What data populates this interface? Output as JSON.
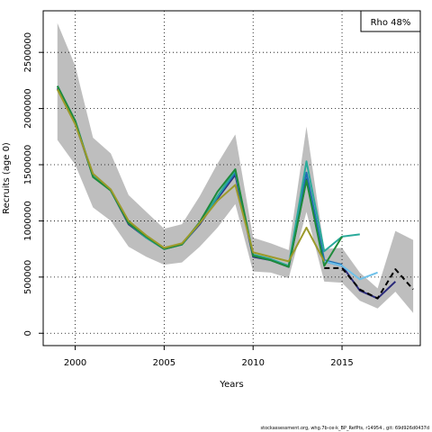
{
  "chart_data": {
    "type": "line",
    "xlabel": "Years",
    "ylabel": "Recruits (age 0)",
    "xlim": [
      1998.2,
      2019.4
    ],
    "ylim": [
      -110000,
      2870000
    ],
    "x_ticks": [
      2000,
      2005,
      2010,
      2015
    ],
    "y_ticks": [
      0,
      500000,
      1000000,
      1500000,
      2000000,
      2500000
    ],
    "y_tick_labels": [
      "0",
      "500000",
      "1000000",
      "1500000",
      "2000000",
      "2500000"
    ],
    "grid": "dotted",
    "legend_text": "Rho 48%",
    "legend_position": "top-right",
    "band": {
      "color": "#bebebe",
      "x": [
        1999,
        2000,
        2001,
        2002,
        2003,
        2004,
        2005,
        2006,
        2007,
        2008,
        2009,
        2010,
        2011,
        2012,
        2013,
        2014,
        2015,
        2016,
        2017,
        2018,
        2019
      ],
      "lower": [
        1720000,
        1500000,
        1120000,
        1000000,
        770000,
        680000,
        610000,
        630000,
        770000,
        940000,
        1150000,
        550000,
        540000,
        490000,
        1080000,
        460000,
        450000,
        290000,
        220000,
        370000,
        180000
      ],
      "upper": [
        2760000,
        2380000,
        1740000,
        1600000,
        1230000,
        1080000,
        930000,
        970000,
        1220000,
        1510000,
        1770000,
        850000,
        800000,
        740000,
        1840000,
        750000,
        760000,
        540000,
        400000,
        910000,
        830000
      ]
    },
    "series": [
      {
        "color": "#2a2a7a",
        "dashed": false,
        "x": [
          1999,
          2000,
          2001,
          2002,
          2003,
          2004,
          2005,
          2006,
          2007,
          2008,
          2009,
          2010,
          2011,
          2012,
          2013,
          2014,
          2015,
          2016,
          2017,
          2018
        ],
        "y": [
          2180000,
          1870000,
          1400000,
          1270000,
          970000,
          850000,
          750000,
          790000,
          970000,
          1200000,
          1410000,
          680000,
          650000,
          590000,
          1370000,
          640000,
          600000,
          380000,
          310000,
          460000
        ]
      },
      {
        "color": "#1f6fb4",
        "dashed": false,
        "x": [
          1999,
          2000,
          2001,
          2002,
          2003,
          2004,
          2005,
          2006,
          2007,
          2008,
          2009,
          2010,
          2011,
          2012,
          2013,
          2014,
          2015
        ],
        "y": [
          2200000,
          1890000,
          1400000,
          1270000,
          980000,
          850000,
          750000,
          790000,
          980000,
          1210000,
          1430000,
          690000,
          650000,
          600000,
          1430000,
          650000,
          610000
        ]
      },
      {
        "color": "#6ec1ea",
        "dashed": false,
        "x": [
          2014,
          2015,
          2016,
          2017
        ],
        "y": [
          640000,
          600000,
          480000,
          540000
        ]
      },
      {
        "color": "#2aaa9b",
        "dashed": false,
        "x": [
          1999,
          2000,
          2001,
          2002,
          2003,
          2004,
          2005,
          2006,
          2007,
          2008,
          2009,
          2010,
          2011,
          2012,
          2013,
          2014,
          2015,
          2016
        ],
        "y": [
          2200000,
          1890000,
          1400000,
          1270000,
          980000,
          850000,
          750000,
          790000,
          980000,
          1220000,
          1450000,
          700000,
          660000,
          600000,
          1530000,
          730000,
          860000,
          880000
        ]
      },
      {
        "color": "#1e8a3a",
        "dashed": false,
        "x": [
          1999,
          2000,
          2001,
          2002,
          2003,
          2004,
          2005,
          2006,
          2007,
          2008,
          2009,
          2010,
          2011,
          2012,
          2013,
          2014,
          2015
        ],
        "y": [
          2200000,
          1890000,
          1390000,
          1270000,
          980000,
          860000,
          750000,
          790000,
          990000,
          1260000,
          1460000,
          690000,
          650000,
          590000,
          1360000,
          600000,
          860000
        ]
      },
      {
        "color": "#9c9a2a",
        "dashed": false,
        "x": [
          1999,
          2000,
          2001,
          2002,
          2003,
          2004,
          2005,
          2006,
          2007,
          2008,
          2009,
          2010,
          2011,
          2012,
          2013,
          2014
        ],
        "y": [
          2170000,
          1860000,
          1420000,
          1280000,
          1000000,
          870000,
          760000,
          800000,
          980000,
          1180000,
          1320000,
          720000,
          680000,
          640000,
          940000,
          640000
        ]
      },
      {
        "color": "#000000",
        "dashed": true,
        "x": [
          2014,
          2015,
          2016,
          2017,
          2018,
          2019
        ],
        "y": [
          580000,
          580000,
          390000,
          310000,
          570000,
          390000
        ]
      }
    ]
  },
  "footer": "stockassessment.org, whg.7b-ce-k_BP_RefPts, r14954 , git: 69d926d0437d"
}
